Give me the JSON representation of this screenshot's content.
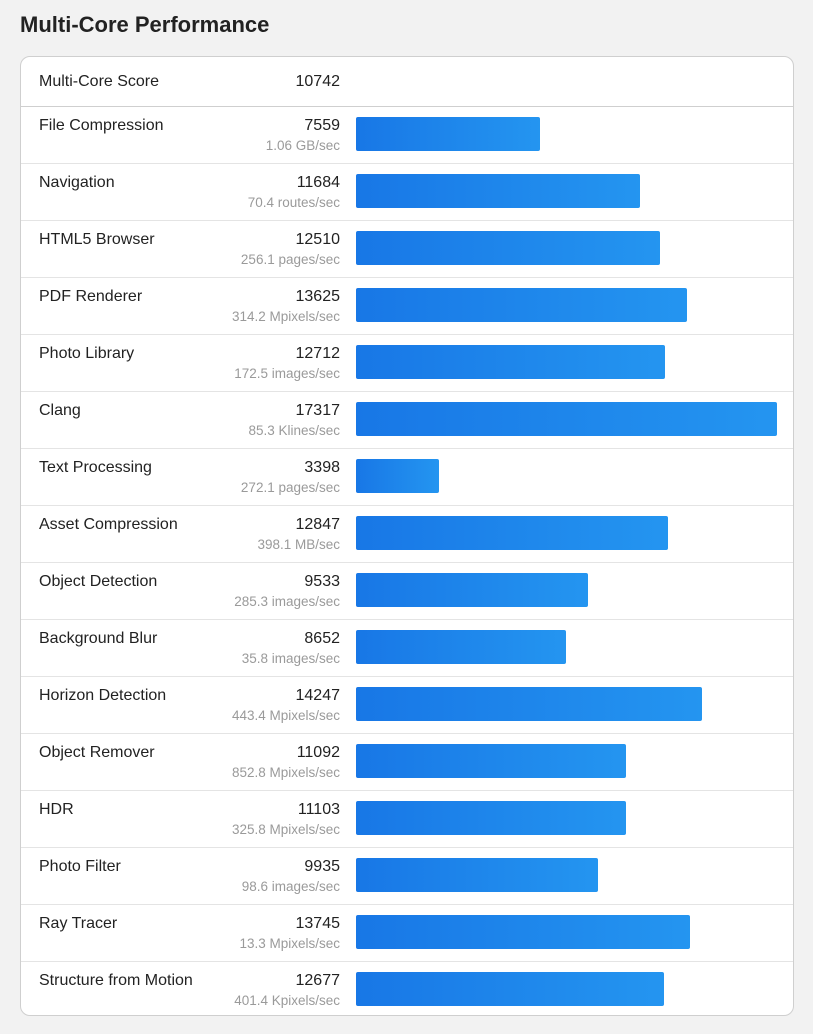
{
  "header": {
    "title": "Multi-Core Performance"
  },
  "summary": {
    "label": "Multi-Core Score",
    "value": "10742"
  },
  "colors": {
    "bar_start": "#1877e6",
    "bar_end": "#2495f0"
  },
  "chart_data": {
    "type": "bar",
    "orientation": "horizontal",
    "categories": [
      "File Compression",
      "Navigation",
      "HTML5 Browser",
      "PDF Renderer",
      "Photo Library",
      "Clang",
      "Text Processing",
      "Asset Compression",
      "Object Detection",
      "Background Blur",
      "Horizon Detection",
      "Object Remover",
      "HDR",
      "Photo Filter",
      "Ray Tracer",
      "Structure from Motion"
    ],
    "values": [
      7559,
      11684,
      12510,
      13625,
      12712,
      17317,
      3398,
      12847,
      9533,
      8652,
      14247,
      11092,
      11103,
      9935,
      13745,
      12677
    ],
    "rates": [
      "1.06 GB/sec",
      "70.4 routes/sec",
      "256.1 pages/sec",
      "314.2 Mpixels/sec",
      "172.5 images/sec",
      "85.3 Klines/sec",
      "272.1 pages/sec",
      "398.1 MB/sec",
      "285.3 images/sec",
      "35.8 images/sec",
      "443.4 Mpixels/sec",
      "852.8 Mpixels/sec",
      "325.8 Mpixels/sec",
      "98.6 images/sec",
      "13.3 Mpixels/sec",
      "401.4 Kpixels/sec"
    ],
    "xlim": [
      0,
      17317
    ],
    "grid": false,
    "legend": "none"
  }
}
